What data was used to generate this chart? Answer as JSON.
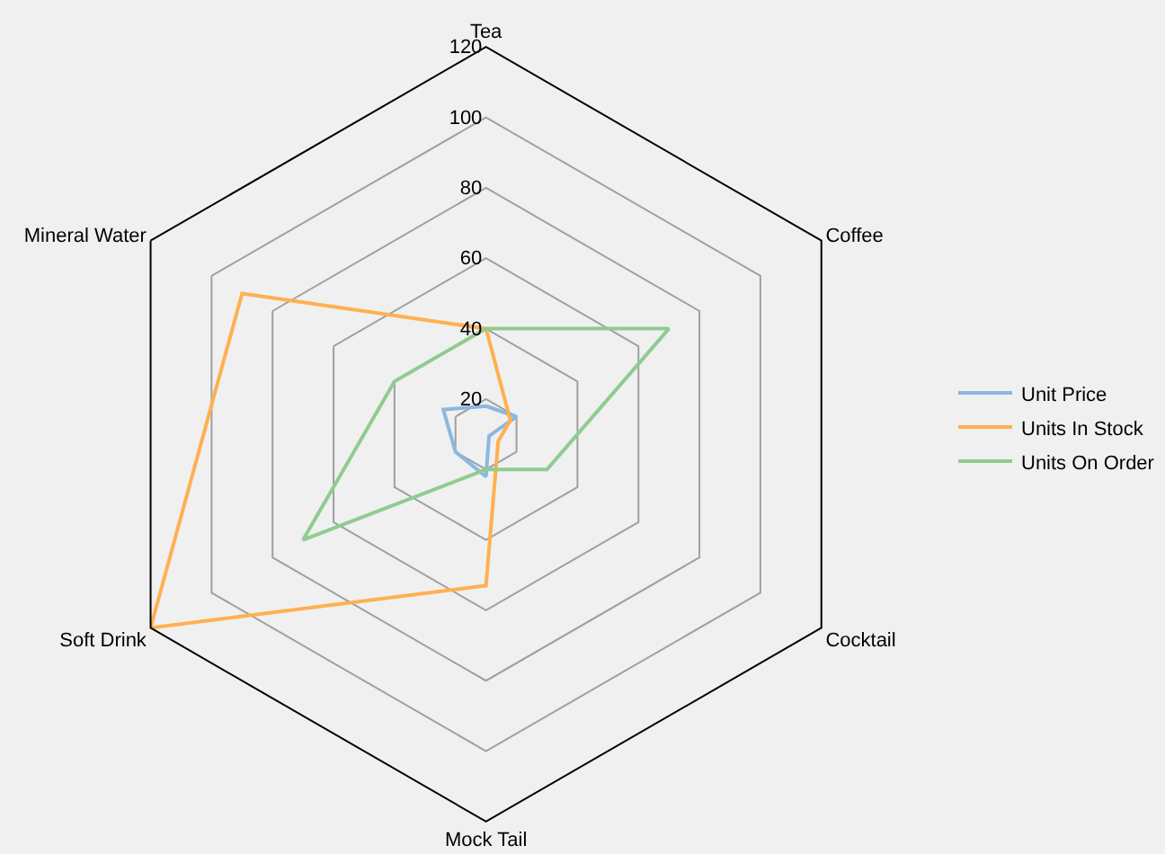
{
  "chart_data": {
    "type": "radar",
    "categories": [
      "Tea",
      "Coffee",
      "Cocktail",
      "Mock Tail",
      "Soft Drink",
      "Mineral Water"
    ],
    "series": [
      {
        "name": "Unit Price",
        "color": "#8ab8e0",
        "values": [
          18,
          20,
          11,
          22,
          20,
          24
        ]
      },
      {
        "name": "Units In Stock",
        "color": "#ffb050",
        "values": [
          40,
          18,
          14,
          53,
          120,
          90
        ]
      },
      {
        "name": "Units On Order",
        "color": "#8fcc8f",
        "values": [
          40,
          70,
          30,
          20,
          70,
          40
        ]
      }
    ],
    "ylim": [
      10,
      120
    ],
    "yticks": [
      20,
      40,
      60,
      80,
      100,
      120
    ],
    "grid": true,
    "legend": "right"
  }
}
